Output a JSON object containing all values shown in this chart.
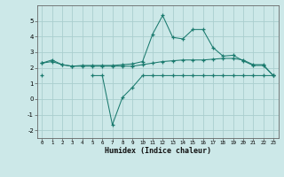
{
  "x": [
    0,
    1,
    2,
    3,
    4,
    5,
    6,
    7,
    8,
    9,
    10,
    11,
    12,
    13,
    14,
    15,
    16,
    17,
    18,
    19,
    20,
    21,
    22,
    23
  ],
  "line_top": [
    2.3,
    2.5,
    2.2,
    2.1,
    2.15,
    2.15,
    2.15,
    2.15,
    2.2,
    2.25,
    2.4,
    4.15,
    5.35,
    3.95,
    3.85,
    4.45,
    4.45,
    3.3,
    2.75,
    2.8,
    2.45,
    2.15,
    2.15,
    1.5
  ],
  "line_mid": [
    2.3,
    2.4,
    2.2,
    2.1,
    2.1,
    2.1,
    2.1,
    2.1,
    2.1,
    2.1,
    2.2,
    2.3,
    2.4,
    2.45,
    2.5,
    2.5,
    2.5,
    2.55,
    2.6,
    2.6,
    2.5,
    2.2,
    2.2,
    1.5
  ],
  "line_bot": [
    1.5,
    null,
    null,
    null,
    null,
    1.5,
    1.5,
    -1.65,
    0.1,
    0.75,
    1.5,
    1.5,
    1.5,
    1.5,
    1.5,
    1.5,
    1.5,
    1.5,
    1.5,
    1.5,
    1.5,
    1.5,
    1.5,
    1.5
  ],
  "color": "#1a7a6e",
  "bg_color": "#cce8e8",
  "grid_color": "#aacece",
  "xlabel": "Humidex (Indice chaleur)",
  "ylim": [
    -2.5,
    6.0
  ],
  "xlim": [
    -0.5,
    23.5
  ],
  "yticks": [
    -2,
    -1,
    0,
    1,
    2,
    3,
    4,
    5
  ],
  "xticks": [
    0,
    1,
    2,
    3,
    4,
    5,
    6,
    7,
    8,
    9,
    10,
    11,
    12,
    13,
    14,
    15,
    16,
    17,
    18,
    19,
    20,
    21,
    22,
    23
  ]
}
